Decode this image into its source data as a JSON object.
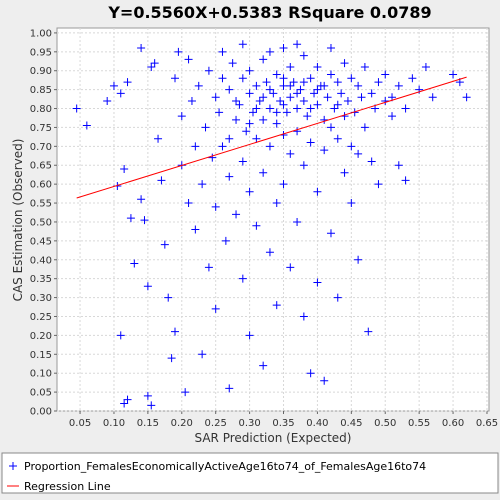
{
  "chart_data": {
    "type": "scatter",
    "title": "Y=0.5560X+0.5383    RSquare 0.0789",
    "x_label": "SAR Prediction (Expected)",
    "y_label": "CAS Estimation (Observed)",
    "xlim": [
      0.016,
      0.653
    ],
    "ylim": [
      0,
      1.013
    ],
    "grid": true,
    "xticks": [
      0.05,
      {
        "value": 0.1,
        "label": "0.10"
      },
      0.15,
      {
        "value": 0.2,
        "label": "0.20"
      },
      0.25,
      {
        "value": 0.3,
        "label": "0.30"
      },
      0.35,
      {
        "value": 0.4,
        "label": "0.40"
      },
      0.45,
      {
        "value": 0.5,
        "label": "0.50"
      },
      0.55,
      {
        "value": 0.6,
        "label": "0.60"
      },
      0.65
    ],
    "yticks": [
      {
        "value": 0,
        "label": "0.00"
      },
      0.05,
      {
        "value": 0.1,
        "label": "0.10"
      },
      0.15,
      {
        "value": 0.2,
        "label": "0.20"
      },
      0.25,
      {
        "value": 0.3,
        "label": "0.30"
      },
      0.35,
      {
        "value": 0.4,
        "label": "0.40"
      },
      0.45,
      {
        "value": 0.5,
        "label": "0.50"
      },
      0.55,
      {
        "value": 0.6,
        "label": "0.60"
      },
      0.65,
      {
        "value": 0.7,
        "label": "0.70"
      },
      0.75,
      {
        "value": 0.8,
        "label": "0.80"
      },
      0.85,
      {
        "value": 0.9,
        "label": "0.90"
      },
      0.95,
      {
        "value": 1,
        "label": "1.00"
      }
    ],
    "series": [
      {
        "name": "Proportion_FemalesEconomicallyActiveAge16to74_of_FemalesAge16to74",
        "color": "#0000ff",
        "marker": "+",
        "x": [
          0.045,
          0.06,
          0.09,
          0.1,
          0.11,
          0.12,
          0.105,
          0.115,
          0.125,
          0.13,
          0.11,
          0.115,
          0.12,
          0.14,
          0.145,
          0.15,
          0.155,
          0.15,
          0.16,
          0.14,
          0.155,
          0.165,
          0.17,
          0.175,
          0.18,
          0.185,
          0.19,
          0.19,
          0.195,
          0.2,
          0.2,
          0.205,
          0.21,
          0.21,
          0.215,
          0.22,
          0.22,
          0.225,
          0.23,
          0.23,
          0.235,
          0.24,
          0.24,
          0.245,
          0.25,
          0.25,
          0.25,
          0.255,
          0.26,
          0.26,
          0.265,
          0.27,
          0.27,
          0.27,
          0.275,
          0.28,
          0.28,
          0.285,
          0.29,
          0.29,
          0.29,
          0.295,
          0.3,
          0.3,
          0.3,
          0.3,
          0.305,
          0.31,
          0.31,
          0.31,
          0.315,
          0.32,
          0.32,
          0.32,
          0.32,
          0.325,
          0.33,
          0.33,
          0.33,
          0.335,
          0.34,
          0.34,
          0.34,
          0.34,
          0.345,
          0.35,
          0.35,
          0.35,
          0.35,
          0.355,
          0.36,
          0.36,
          0.36,
          0.36,
          0.365,
          0.37,
          0.37,
          0.37,
          0.375,
          0.38,
          0.38,
          0.38,
          0.38,
          0.385,
          0.39,
          0.39,
          0.39,
          0.395,
          0.4,
          0.4,
          0.4,
          0.4,
          0.405,
          0.41,
          0.41,
          0.41,
          0.415,
          0.42,
          0.42,
          0.42,
          0.425,
          0.43,
          0.43,
          0.43,
          0.435,
          0.44,
          0.44,
          0.44,
          0.445,
          0.45,
          0.45,
          0.45,
          0.455,
          0.46,
          0.46,
          0.46,
          0.465,
          0.47,
          0.47,
          0.475,
          0.48,
          0.48,
          0.485,
          0.49,
          0.49,
          0.5,
          0.5,
          0.51,
          0.51,
          0.52,
          0.52,
          0.53,
          0.53,
          0.54,
          0.55,
          0.56,
          0.57,
          0.6,
          0.61,
          0.62,
          0.26,
          0.29,
          0.33,
          0.37,
          0.42,
          0.31,
          0.33,
          0.35,
          0.37,
          0.39,
          0.41,
          0.43,
          0.35,
          0.32,
          0.34,
          0.36,
          0.38,
          0.4,
          0.28,
          0.3,
          0.27
        ],
        "values": [
          0.8,
          0.755,
          0.82,
          0.86,
          0.84,
          0.87,
          0.595,
          0.64,
          0.51,
          0.39,
          0.2,
          0.02,
          0.03,
          0.56,
          0.505,
          0.04,
          0.015,
          0.33,
          0.92,
          0.96,
          0.91,
          0.72,
          0.61,
          0.44,
          0.3,
          0.14,
          0.21,
          0.88,
          0.95,
          0.78,
          0.65,
          0.05,
          0.55,
          0.93,
          0.82,
          0.7,
          0.48,
          0.86,
          0.6,
          0.15,
          0.75,
          0.9,
          0.38,
          0.67,
          0.83,
          0.54,
          0.27,
          0.79,
          0.88,
          0.7,
          0.45,
          0.85,
          0.62,
          0.06,
          0.92,
          0.77,
          0.52,
          0.81,
          0.88,
          0.66,
          0.35,
          0.74,
          0.84,
          0.9,
          0.58,
          0.2,
          0.79,
          0.86,
          0.72,
          0.49,
          0.82,
          0.93,
          0.77,
          0.63,
          0.12,
          0.87,
          0.8,
          0.7,
          0.42,
          0.84,
          0.89,
          0.76,
          0.55,
          0.28,
          0.82,
          0.96,
          0.86,
          0.73,
          0.6,
          0.79,
          0.91,
          0.83,
          0.68,
          0.38,
          0.87,
          0.8,
          0.74,
          0.5,
          0.85,
          0.94,
          0.82,
          0.65,
          0.25,
          0.78,
          0.88,
          0.71,
          0.1,
          0.84,
          0.91,
          0.81,
          0.58,
          0.34,
          0.86,
          0.77,
          0.69,
          0.08,
          0.83,
          0.89,
          0.75,
          0.47,
          0.8,
          0.87,
          0.72,
          0.3,
          0.84,
          0.92,
          0.78,
          0.63,
          0.82,
          0.88,
          0.7,
          0.55,
          0.79,
          0.86,
          0.68,
          0.4,
          0.83,
          0.91,
          0.75,
          0.21,
          0.84,
          0.66,
          0.8,
          0.87,
          0.6,
          0.82,
          0.89,
          0.78,
          0.83,
          0.86,
          0.65,
          0.8,
          0.61,
          0.88,
          0.85,
          0.91,
          0.83,
          0.89,
          0.87,
          0.83,
          0.95,
          0.97,
          0.95,
          0.97,
          0.96,
          0.8,
          0.85,
          0.81,
          0.84,
          0.8,
          0.86,
          0.81,
          0.88,
          0.83,
          0.79,
          0.86,
          0.87,
          0.85,
          0.82,
          0.76,
          0.72
        ]
      },
      {
        "name": "Regression Line",
        "color": "#ff0000",
        "type": "line",
        "x": [
          0.045,
          0.62
        ],
        "values": [
          0.5633,
          0.883
        ]
      }
    ]
  }
}
